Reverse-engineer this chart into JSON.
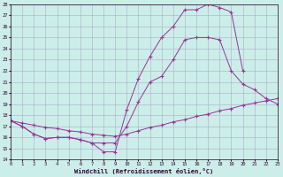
{
  "xlabel": "Windchill (Refroidissement éolien,°C)",
  "bg_color": "#cceee8",
  "grid_color": "#aaaacc",
  "line_color": "#993399",
  "xmin": 0,
  "xmax": 23,
  "ymin": 14,
  "ymax": 28,
  "curve1_x": [
    0,
    1,
    2,
    3,
    4,
    5,
    6,
    7,
    8,
    9,
    10,
    11,
    12,
    13,
    14,
    15,
    16,
    17,
    18,
    19,
    20
  ],
  "curve1_y": [
    17.5,
    17.0,
    16.3,
    15.9,
    16.0,
    16.0,
    15.8,
    15.5,
    14.7,
    14.7,
    18.5,
    21.3,
    23.3,
    25.0,
    26.0,
    27.5,
    27.5,
    28.0,
    27.7,
    27.3,
    22.0
  ],
  "curve2_x": [
    0,
    1,
    2,
    3,
    4,
    5,
    6,
    7,
    8,
    9,
    10,
    11,
    12,
    13,
    14,
    15,
    16,
    17,
    18,
    19,
    20,
    21,
    22,
    23
  ],
  "curve2_y": [
    17.5,
    17.0,
    16.3,
    15.9,
    16.0,
    16.0,
    15.8,
    15.5,
    15.5,
    15.5,
    17.0,
    19.2,
    21.0,
    21.5,
    23.0,
    24.8,
    25.0,
    25.0,
    24.8,
    22.0,
    20.8,
    20.3,
    19.5,
    19.0
  ],
  "curve3_x": [
    0,
    1,
    2,
    3,
    4,
    5,
    6,
    7,
    8,
    9,
    10,
    11,
    12,
    13,
    14,
    15,
    16,
    17,
    18,
    19,
    20,
    21,
    22,
    23
  ],
  "curve3_y": [
    17.5,
    17.3,
    17.1,
    16.9,
    16.8,
    16.6,
    16.5,
    16.3,
    16.2,
    16.1,
    16.3,
    16.6,
    16.9,
    17.1,
    17.4,
    17.6,
    17.9,
    18.1,
    18.4,
    18.6,
    18.9,
    19.1,
    19.3,
    19.5
  ]
}
